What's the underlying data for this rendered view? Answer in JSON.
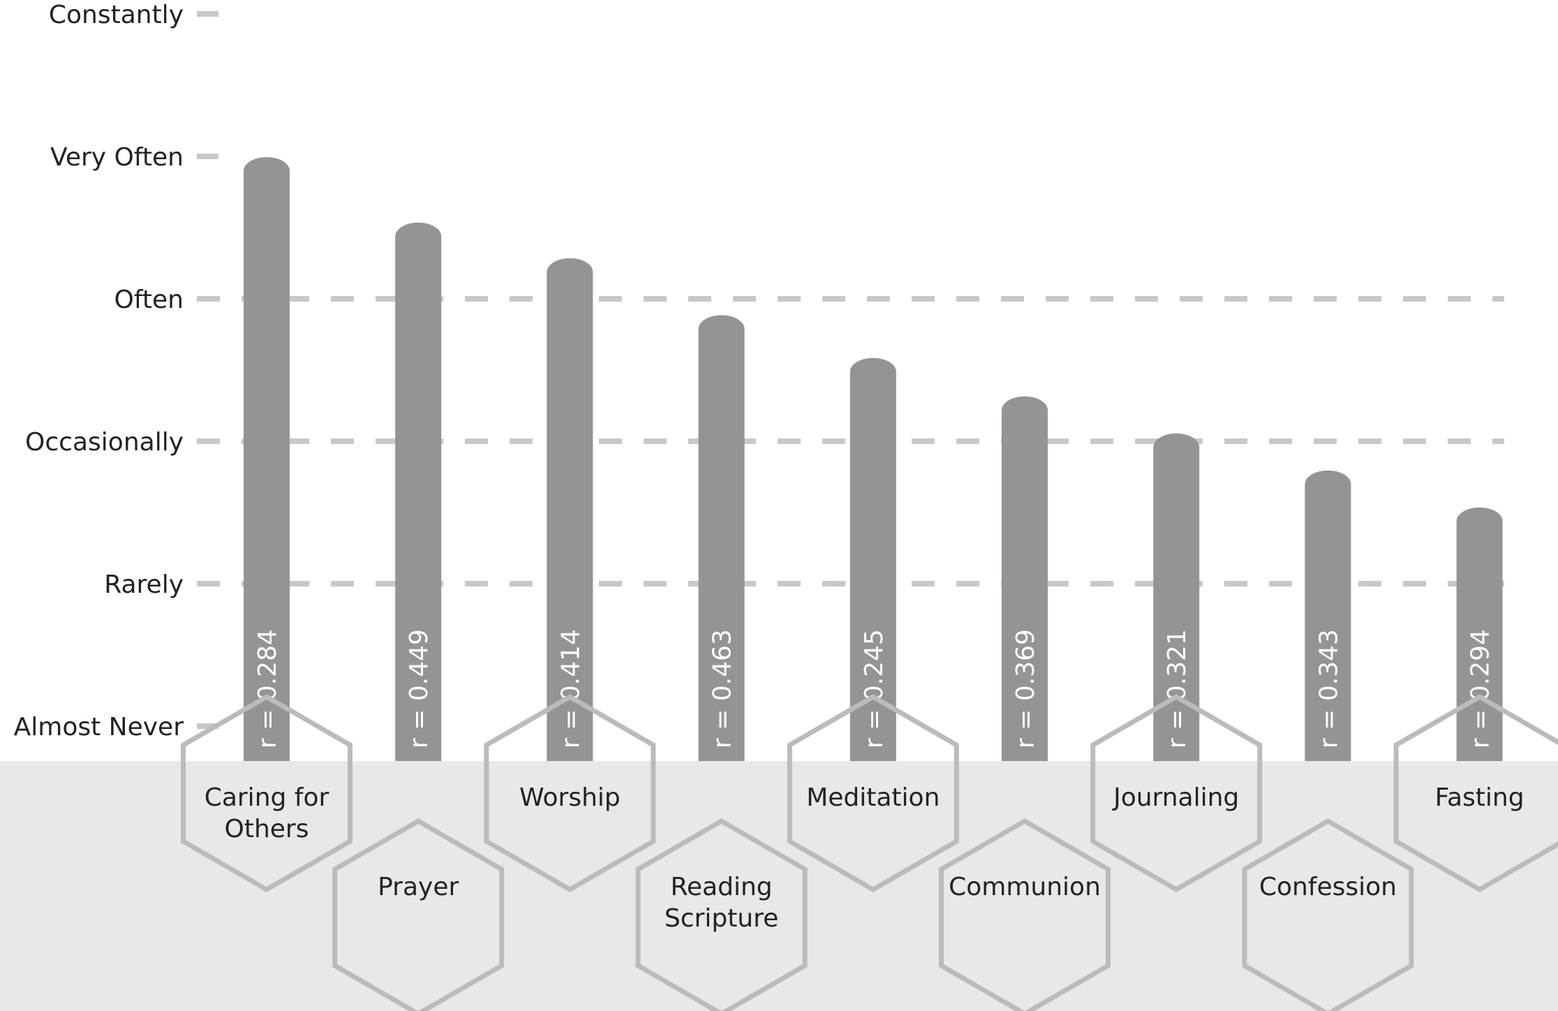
{
  "chart_data": {
    "type": "bar",
    "title": "",
    "xlabel": "",
    "ylabel": "",
    "y_scale": [
      "Almost Never",
      "Rarely",
      "Occasionally",
      "Often",
      "Very Often",
      "Constantly"
    ],
    "ylim": [
      0,
      5
    ],
    "grid": "dashed lines at Rarely, Occasionally, Often",
    "categories": [
      "Caring for Others",
      "Prayer",
      "Worship",
      "Reading Scripture",
      "Meditation",
      "Communion",
      "Journaling",
      "Confession",
      "Fasting"
    ],
    "category_lines": [
      [
        "Caring for",
        "Others"
      ],
      [
        "Prayer"
      ],
      [
        "Worship"
      ],
      [
        "Reading",
        "Scripture"
      ],
      [
        "Meditation"
      ],
      [
        "Communion"
      ],
      [
        "Journaling"
      ],
      [
        "Confession"
      ],
      [
        "Fasting"
      ]
    ],
    "values": [
      4.06,
      3.6,
      3.35,
      2.95,
      2.65,
      2.38,
      2.12,
      1.86,
      1.6
    ],
    "data_labels": [
      "r = 0.284",
      "r = 0.449",
      "r = 0.414",
      "r = 0.463",
      "r = 0.245",
      "r = 0.369",
      "r = 0.321",
      "r = 0.343",
      "r = 0.294"
    ],
    "colors": {
      "bar": "#939497",
      "grid": "#c8c8c8",
      "tick": "#c8c8c8",
      "floor": "#e7e8ea",
      "hexagon": "#bbbbbd",
      "text": "#222222"
    }
  }
}
